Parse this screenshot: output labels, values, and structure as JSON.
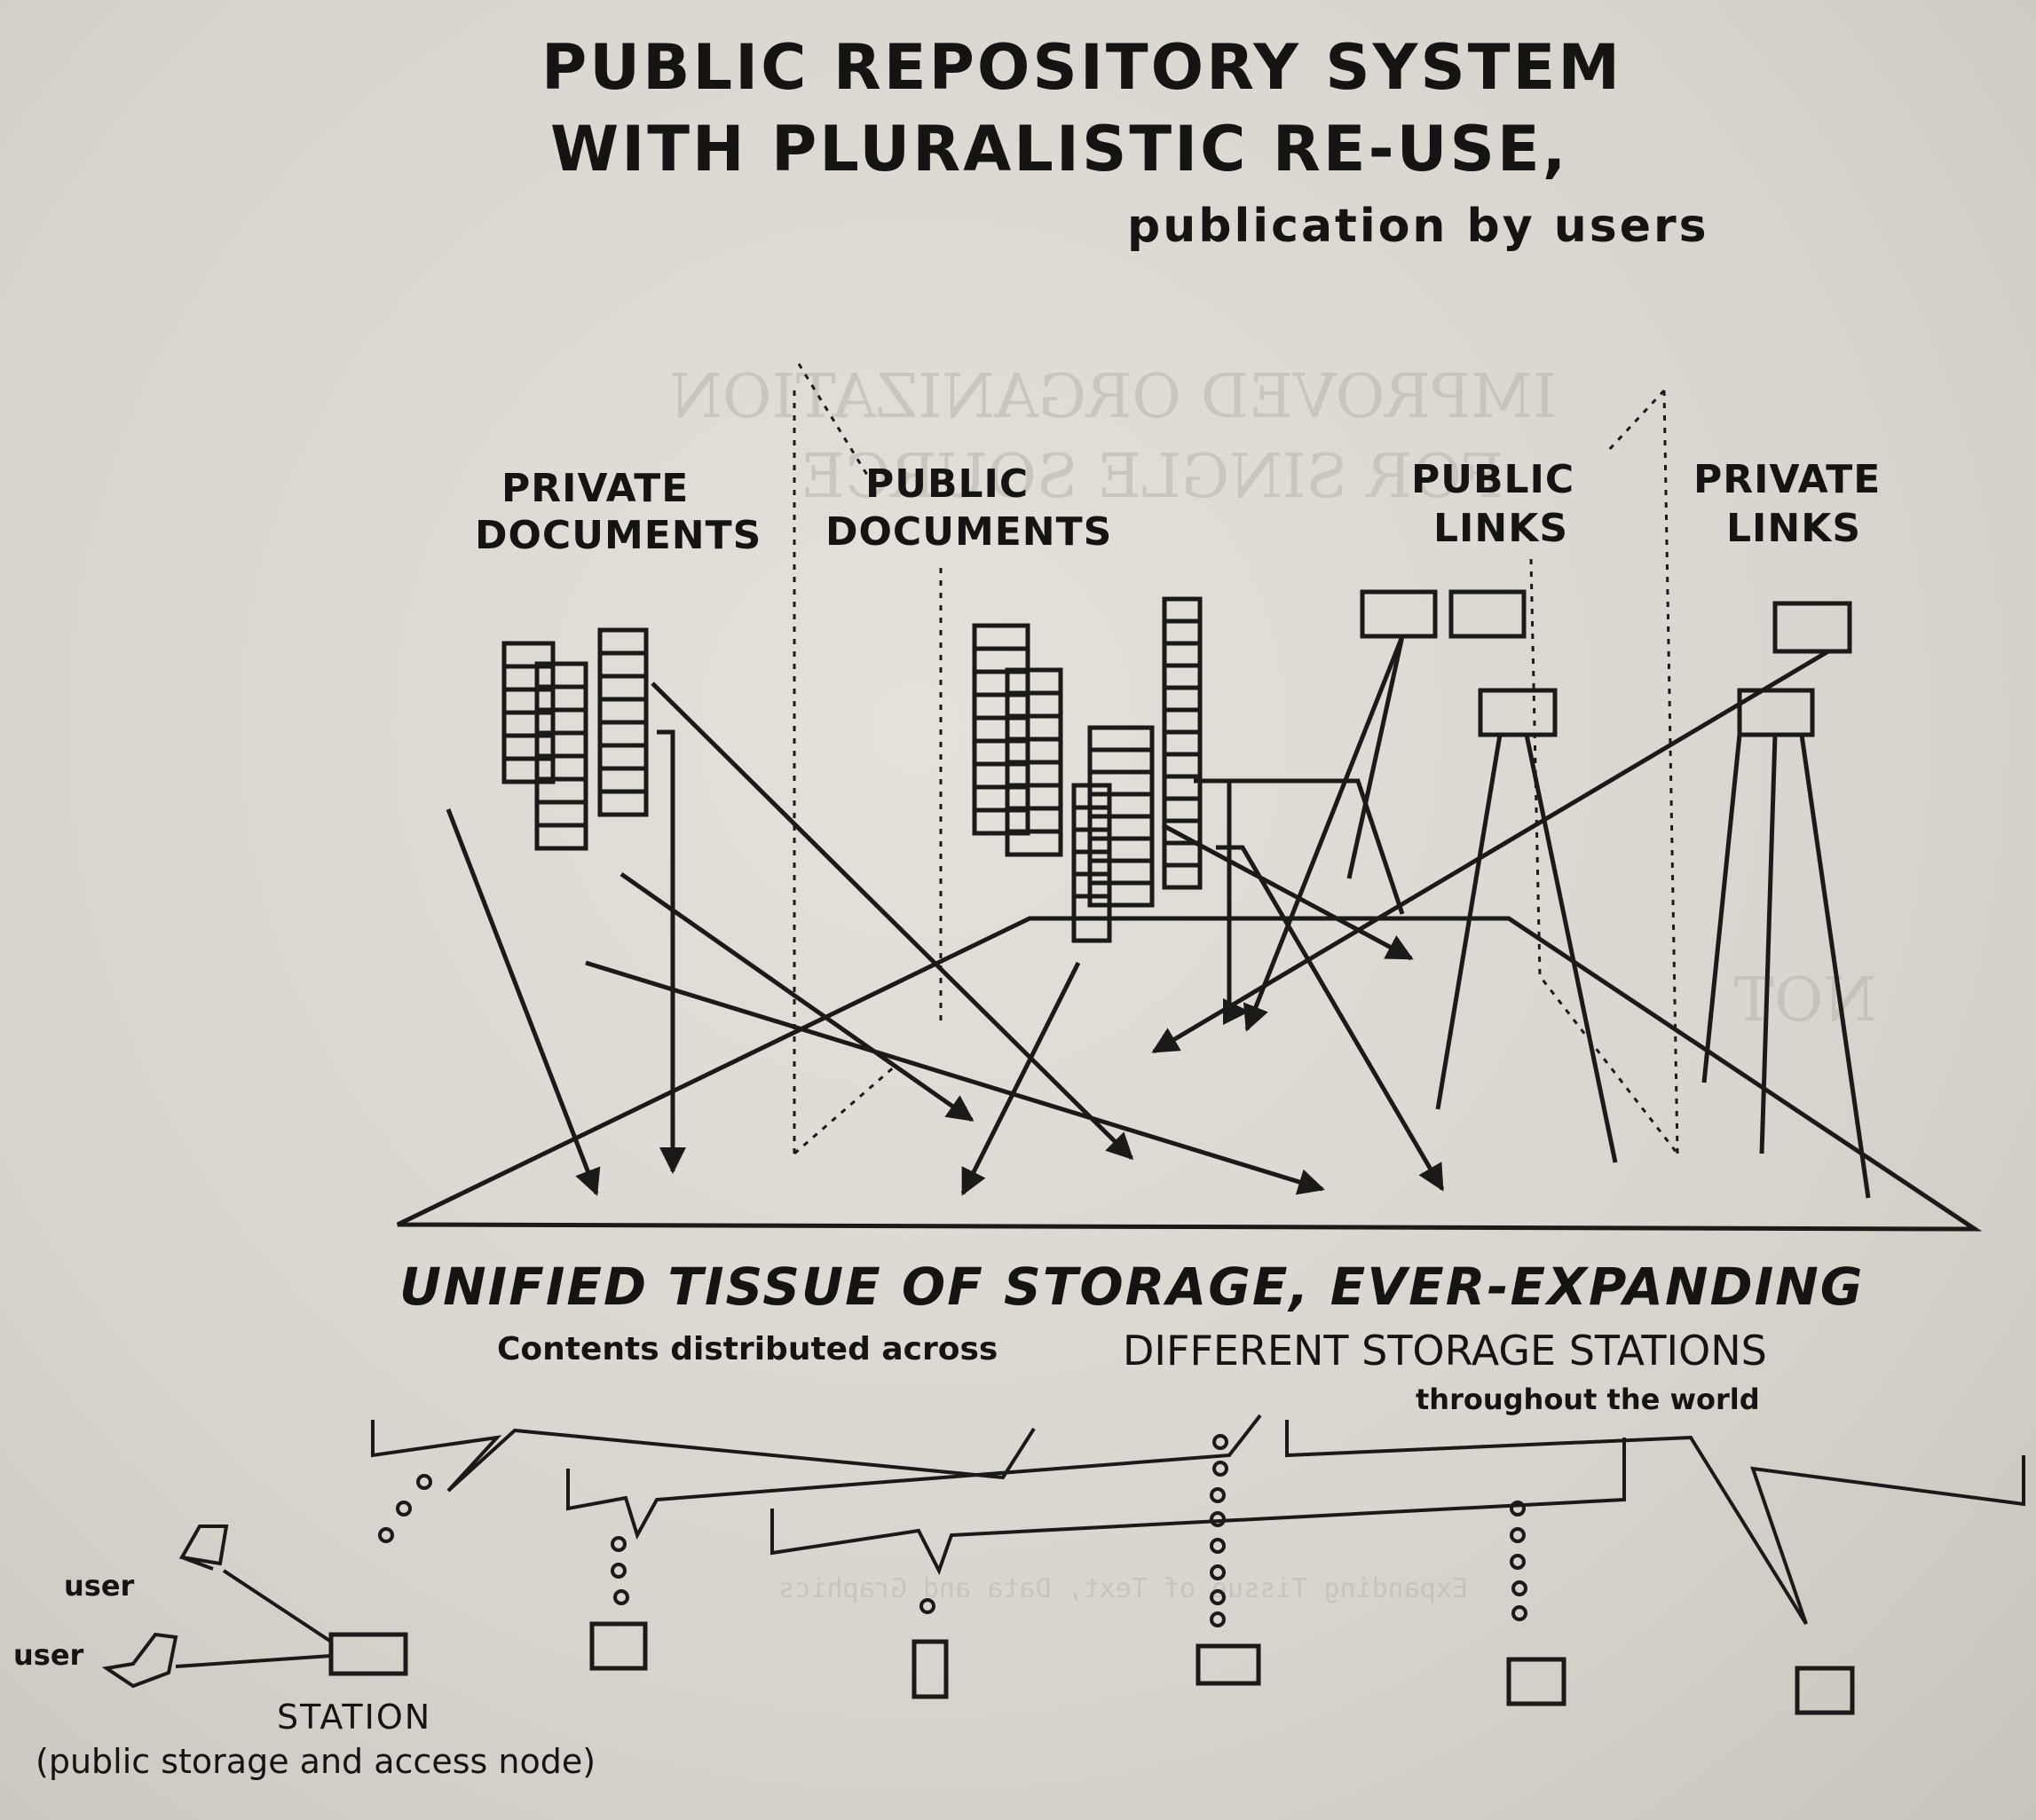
{
  "title": {
    "line1": "PUBLIC REPOSITORY SYSTEM",
    "line2": "WITH PLURALISTIC RE-USE,",
    "subtitle": "publication by users"
  },
  "categories": {
    "private_documents": [
      "PRIVATE",
      "DOCUMENTS"
    ],
    "public_documents": [
      "PUBLIC",
      "DOCUMENTS"
    ],
    "public_links": [
      "PUBLIC",
      "LINKS"
    ],
    "private_links": [
      "PRIVATE",
      "LINKS"
    ]
  },
  "storage": {
    "heading": "UNIFIED TISSUE OF STORAGE, EVER-EXPANDING",
    "contents_prefix": "Contents distributed across",
    "contents_main": "DIFFERENT STORAGE STATIONS",
    "contents_suffix": "throughout the world"
  },
  "users": {
    "user1": "user",
    "user2": "user"
  },
  "station": {
    "label": "STATION",
    "description": "(public storage and access node)"
  },
  "bleed_through": {
    "large": [
      "IMPROVED ORGANIZATION",
      "FOR SINGLE SOURCE",
      "NOT"
    ],
    "small": [
      "Expanding Tissue of Text, Data and Graphics"
    ]
  },
  "colors": {
    "ink": "#1c1a18",
    "paper": "#dcd9d2"
  }
}
